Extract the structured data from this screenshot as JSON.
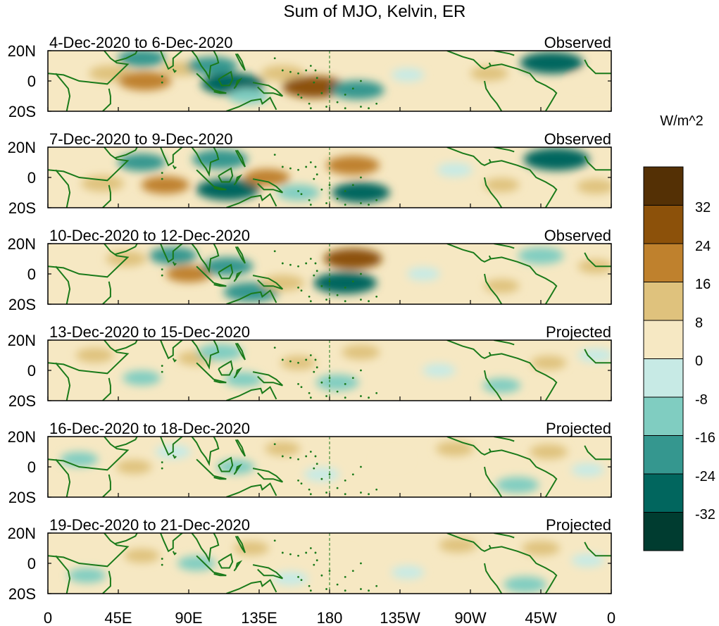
{
  "title": "Sum of MJO, Kelvin, ER",
  "colorbar": {
    "units": "W/m^2",
    "labels": [
      "32",
      "24",
      "16",
      "8",
      "0",
      "-8",
      "-16",
      "-24",
      "-32"
    ],
    "colors": [
      "#543005",
      "#8c510a",
      "#bf812d",
      "#dfc27d",
      "#f6e8c3",
      "#c7eae5",
      "#80cdc1",
      "#35978f",
      "#01665e",
      "#003c30"
    ]
  },
  "x_axis": {
    "ticks": [
      "0",
      "45E",
      "90E",
      "135E",
      "180",
      "135W",
      "90W",
      "45W",
      "0"
    ]
  },
  "y_axis": {
    "ticks": [
      "20N",
      "0",
      "20S"
    ]
  },
  "panels": [
    {
      "date_range": "4-Dec-2020 to 6-Dec-2020",
      "status": "Observed"
    },
    {
      "date_range": "7-Dec-2020 to 9-Dec-2020",
      "status": "Observed"
    },
    {
      "date_range": "10-Dec-2020 to 12-Dec-2020",
      "status": "Observed"
    },
    {
      "date_range": "13-Dec-2020 to 15-Dec-2020",
      "status": "Projected"
    },
    {
      "date_range": "16-Dec-2020 to 18-Dec-2020",
      "status": "Projected"
    },
    {
      "date_range": "19-Dec-2020 to 21-Dec-2020",
      "status": "Projected"
    }
  ],
  "anomaly_features": [
    [
      {
        "lon": 40,
        "lat": 5,
        "v": 14
      },
      {
        "lon": 60,
        "lat": 15,
        "v": -18
      },
      {
        "lon": 62,
        "lat": 0,
        "v": 22
      },
      {
        "lon": 85,
        "lat": 8,
        "v": 10
      },
      {
        "lon": 105,
        "lat": 10,
        "v": -20
      },
      {
        "lon": 118,
        "lat": -2,
        "v": -30
      },
      {
        "lon": 128,
        "lat": -10,
        "v": -12
      },
      {
        "lon": 150,
        "lat": 5,
        "v": 14
      },
      {
        "lon": 170,
        "lat": -4,
        "v": 30
      },
      {
        "lon": 198,
        "lat": -6,
        "v": -22
      },
      {
        "lon": 230,
        "lat": 4,
        "v": -6
      },
      {
        "lon": 282,
        "lat": 5,
        "v": 10
      },
      {
        "lon": 322,
        "lat": 12,
        "v": -30
      },
      {
        "lon": 345,
        "lat": 0,
        "v": 6
      }
    ],
    [
      {
        "lon": 35,
        "lat": -4,
        "v": 14
      },
      {
        "lon": 60,
        "lat": 10,
        "v": -18
      },
      {
        "lon": 75,
        "lat": -5,
        "v": 18
      },
      {
        "lon": 110,
        "lat": 12,
        "v": -24
      },
      {
        "lon": 115,
        "lat": -8,
        "v": -30
      },
      {
        "lon": 140,
        "lat": 0,
        "v": 16
      },
      {
        "lon": 160,
        "lat": -10,
        "v": -14
      },
      {
        "lon": 195,
        "lat": 8,
        "v": 22
      },
      {
        "lon": 200,
        "lat": -10,
        "v": -26
      },
      {
        "lon": 260,
        "lat": 5,
        "v": -8
      },
      {
        "lon": 290,
        "lat": -5,
        "v": 8
      },
      {
        "lon": 325,
        "lat": 12,
        "v": -32
      },
      {
        "lon": 350,
        "lat": -6,
        "v": 10
      }
    ],
    [
      {
        "lon": 50,
        "lat": 10,
        "v": 12
      },
      {
        "lon": 80,
        "lat": 12,
        "v": -18
      },
      {
        "lon": 90,
        "lat": 0,
        "v": 16
      },
      {
        "lon": 115,
        "lat": 5,
        "v": -20
      },
      {
        "lon": 130,
        "lat": -12,
        "v": -24
      },
      {
        "lon": 150,
        "lat": -6,
        "v": 14
      },
      {
        "lon": 195,
        "lat": 10,
        "v": 26
      },
      {
        "lon": 190,
        "lat": -6,
        "v": -30
      },
      {
        "lon": 240,
        "lat": 0,
        "v": -6
      },
      {
        "lon": 290,
        "lat": -8,
        "v": 8
      },
      {
        "lon": 315,
        "lat": 12,
        "v": -16
      },
      {
        "lon": 350,
        "lat": 5,
        "v": 8
      }
    ],
    [
      {
        "lon": 30,
        "lat": 10,
        "v": 10
      },
      {
        "lon": 60,
        "lat": -5,
        "v": -10
      },
      {
        "lon": 95,
        "lat": 8,
        "v": 10
      },
      {
        "lon": 110,
        "lat": 12,
        "v": -16
      },
      {
        "lon": 125,
        "lat": -6,
        "v": -10
      },
      {
        "lon": 160,
        "lat": 5,
        "v": 8
      },
      {
        "lon": 185,
        "lat": -8,
        "v": -14
      },
      {
        "lon": 200,
        "lat": 12,
        "v": 10
      },
      {
        "lon": 250,
        "lat": 0,
        "v": -6
      },
      {
        "lon": 290,
        "lat": -10,
        "v": -10
      },
      {
        "lon": 320,
        "lat": 5,
        "v": 8
      },
      {
        "lon": 350,
        "lat": 10,
        "v": -8
      }
    ],
    [
      {
        "lon": 20,
        "lat": 5,
        "v": -10
      },
      {
        "lon": 55,
        "lat": 0,
        "v": 8
      },
      {
        "lon": 80,
        "lat": 10,
        "v": -8
      },
      {
        "lon": 120,
        "lat": 0,
        "v": -10
      },
      {
        "lon": 150,
        "lat": 12,
        "v": 8
      },
      {
        "lon": 175,
        "lat": -5,
        "v": -8
      },
      {
        "lon": 220,
        "lat": 5,
        "v": 6
      },
      {
        "lon": 260,
        "lat": 12,
        "v": 10
      },
      {
        "lon": 300,
        "lat": -12,
        "v": -14
      },
      {
        "lon": 320,
        "lat": 10,
        "v": 10
      },
      {
        "lon": 345,
        "lat": -2,
        "v": -6
      }
    ],
    [
      {
        "lon": 25,
        "lat": -8,
        "v": -10
      },
      {
        "lon": 60,
        "lat": 5,
        "v": 8
      },
      {
        "lon": 95,
        "lat": 0,
        "v": -10
      },
      {
        "lon": 130,
        "lat": 10,
        "v": 8
      },
      {
        "lon": 155,
        "lat": -10,
        "v": -8
      },
      {
        "lon": 185,
        "lat": 5,
        "v": 6
      },
      {
        "lon": 230,
        "lat": -6,
        "v": -6
      },
      {
        "lon": 262,
        "lat": 12,
        "v": 10
      },
      {
        "lon": 305,
        "lat": -14,
        "v": -14
      },
      {
        "lon": 315,
        "lat": 10,
        "v": 10
      },
      {
        "lon": 345,
        "lat": 2,
        "v": -6
      }
    ]
  ]
}
